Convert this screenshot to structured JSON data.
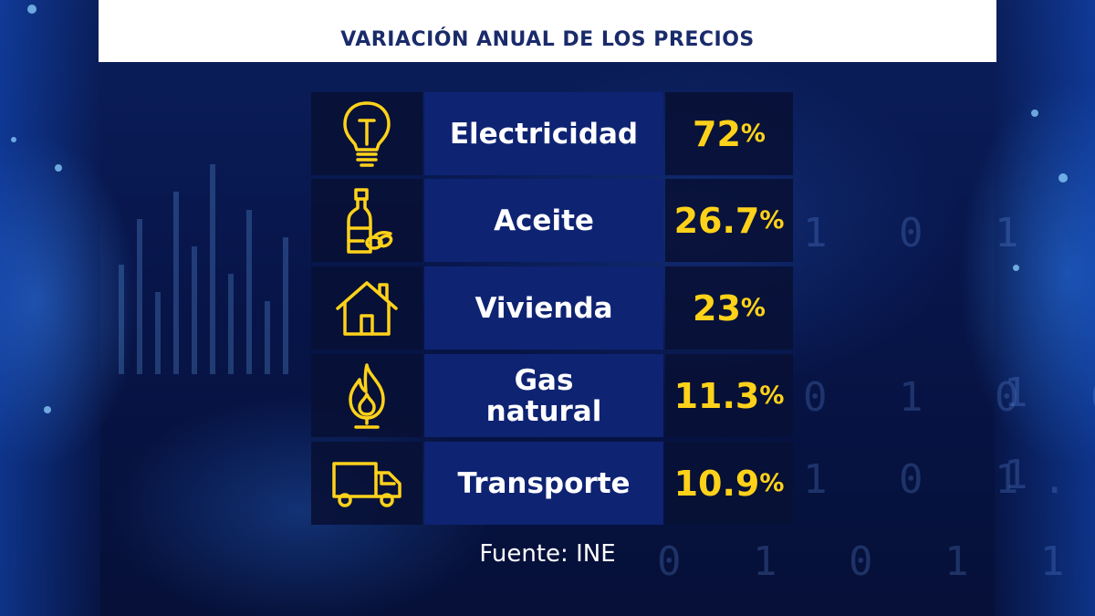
{
  "title": "VARIACIÓN ANUAL DE LOS PRECIOS",
  "accent_color": "#ffd21a",
  "label_bg_color": "#0e2372",
  "rows": [
    {
      "icon": "lightbulb-icon",
      "label": "Electricidad",
      "value": "72",
      "unit": "%"
    },
    {
      "icon": "oil-bottle-olives-icon",
      "label": "Aceite",
      "value": "26.7",
      "unit": "%"
    },
    {
      "icon": "house-icon",
      "label": "Vivienda",
      "value": "23",
      "unit": "%"
    },
    {
      "icon": "gas-flame-icon",
      "label": "Gas natural",
      "value": "11.3",
      "unit": "%"
    },
    {
      "icon": "truck-icon",
      "label": "Transporte",
      "value": "10.9",
      "unit": "%"
    }
  ],
  "source": "Fuente: INE"
}
